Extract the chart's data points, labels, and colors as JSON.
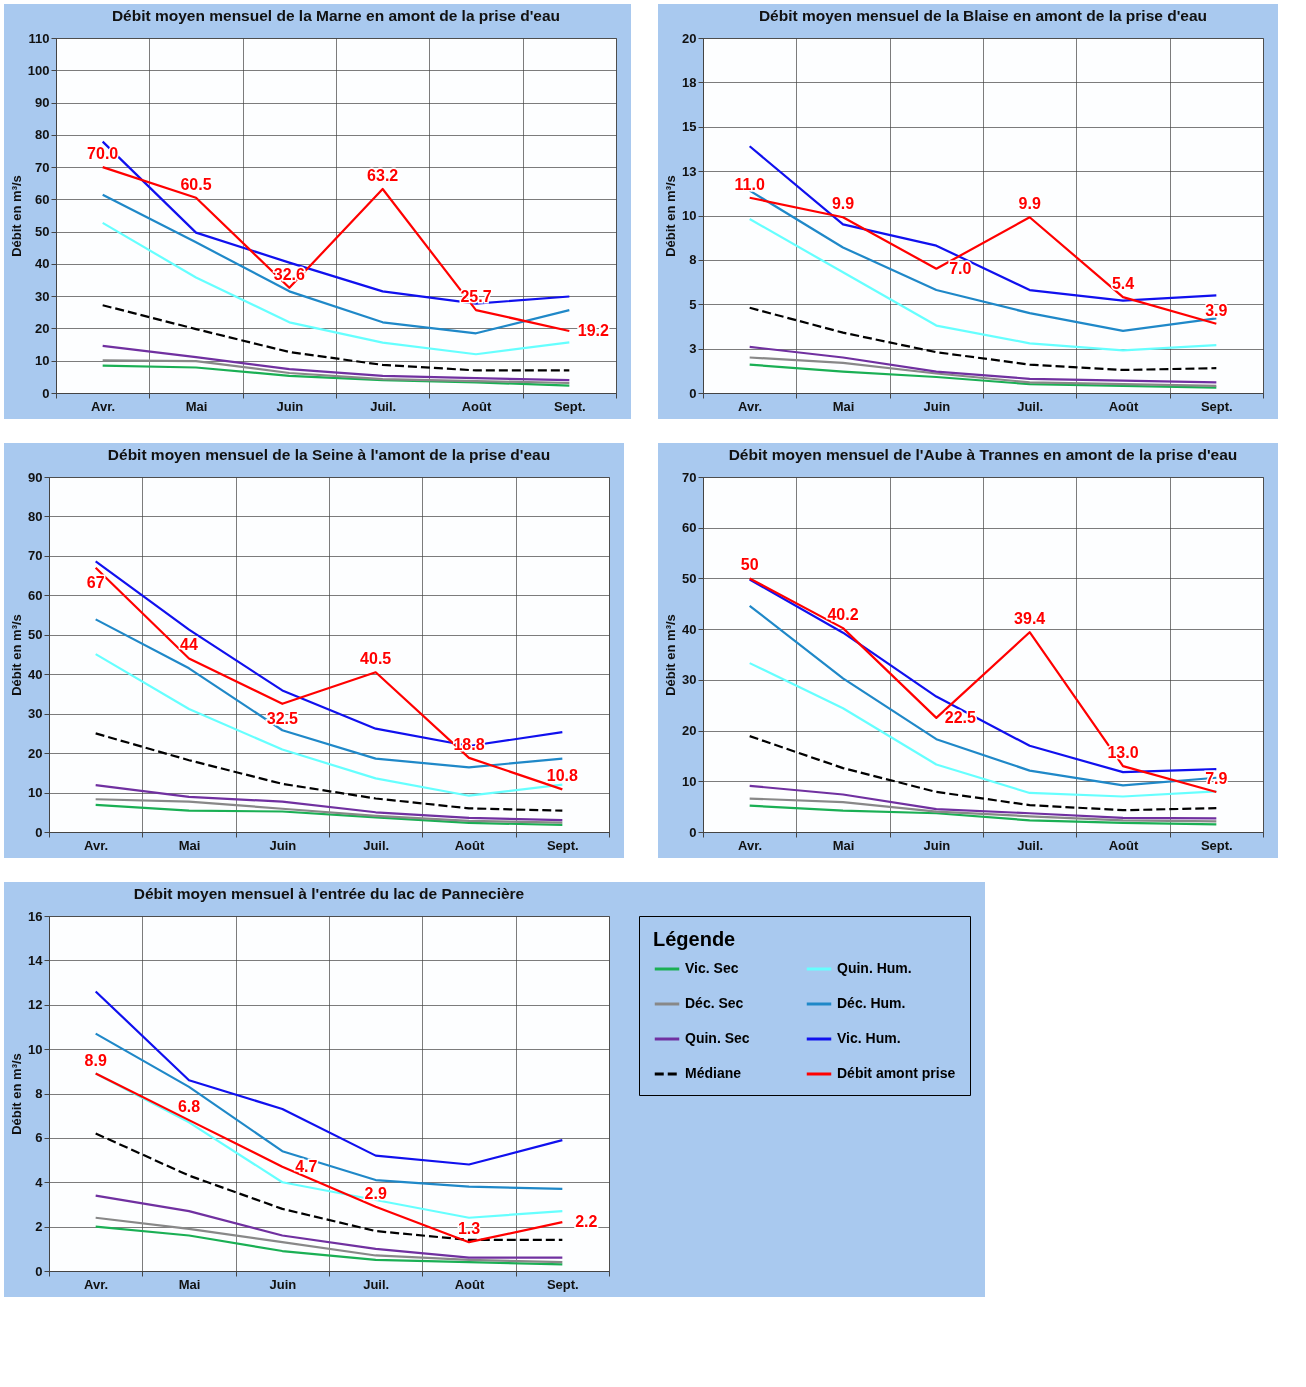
{
  "chart_data": [
    {
      "type": "line",
      "title": "Débit moyen mensuel de la Marne en amont de la prise d'eau",
      "ylabel": "Débit en m³/s",
      "categories": [
        "Avr.",
        "Mai",
        "Juin",
        "Juil.",
        "Août",
        "Sept."
      ],
      "ylim": [
        0,
        110
      ],
      "yticks": [
        0,
        10,
        20,
        30,
        40,
        50,
        60,
        70,
        80,
        90,
        100,
        110
      ],
      "grid": true,
      "legend": false,
      "series": [
        {
          "color": "#1aaf54",
          "values": [
            8.5,
            7.9,
            5.3,
            4.0,
            3.3,
            2.3
          ]
        },
        {
          "color": "#888888",
          "values": [
            10.1,
            9.9,
            6.2,
            4.3,
            3.7,
            3.1
          ]
        },
        {
          "color": "#7030a0",
          "values": [
            14.6,
            11.1,
            7.4,
            5.3,
            4.6,
            4.0
          ]
        },
        {
          "color": "#000000",
          "line_style": "dashed",
          "values": [
            27.2,
            19.8,
            12.7,
            8.7,
            7.0,
            7.0
          ]
        },
        {
          "color": "#66ffff",
          "values": [
            52.7,
            35.8,
            21.9,
            15.6,
            12.0,
            15.7
          ]
        },
        {
          "color": "#1f88c8",
          "values": [
            61.4,
            46.7,
            31.5,
            21.9,
            18.5,
            25.7
          ]
        },
        {
          "color": "#1010ee",
          "values": [
            77.9,
            49.7,
            40.4,
            31.5,
            27.7,
            29.9
          ]
        },
        {
          "color": "#ff0000",
          "values": [
            70.0,
            60.5,
            32.6,
            63.2,
            25.7,
            19.2
          ],
          "value_labels": [
            "70.0",
            "60.5",
            "32.6",
            "63.2",
            "25.7",
            "19.2"
          ]
        }
      ]
    },
    {
      "type": "line",
      "title": "Débit moyen mensuel de la Blaise en amont de la prise d'eau",
      "ylabel": "Débit en m³/s",
      "categories": [
        "Avr.",
        "Mai",
        "Juin",
        "Juil.",
        "Août",
        "Sept."
      ],
      "ylim": [
        0,
        20
      ],
      "yticks": [
        0,
        {
          "value": 2.5,
          "label": "3"
        },
        5,
        {
          "value": 7.5,
          "label": "8"
        },
        10,
        {
          "value": 12.5,
          "label": "13"
        },
        15,
        {
          "value": 17.5,
          "label": "18"
        },
        20
      ],
      "grid": true,
      "legend": false,
      "series": [
        {
          "color": "#1aaf54",
          "values": [
            1.6,
            1.2,
            0.9,
            0.5,
            0.4,
            0.3
          ]
        },
        {
          "color": "#888888",
          "values": [
            2.0,
            1.7,
            1.1,
            0.6,
            0.5,
            0.4
          ]
        },
        {
          "color": "#7030a0",
          "values": [
            2.6,
            2.0,
            1.2,
            0.8,
            0.7,
            0.6
          ]
        },
        {
          "color": "#000000",
          "line_style": "dashed",
          "values": [
            4.8,
            3.4,
            2.3,
            1.6,
            1.3,
            1.4
          ]
        },
        {
          "color": "#66ffff",
          "values": [
            9.8,
            6.8,
            3.8,
            2.8,
            2.4,
            2.7
          ]
        },
        {
          "color": "#1f88c8",
          "values": [
            11.4,
            8.2,
            5.8,
            4.5,
            3.5,
            4.2
          ]
        },
        {
          "color": "#1010ee",
          "values": [
            13.9,
            9.5,
            8.3,
            5.8,
            5.2,
            5.5
          ]
        },
        {
          "color": "#ff0000",
          "values": [
            11.0,
            9.9,
            7.0,
            9.9,
            5.4,
            3.9
          ],
          "value_labels": [
            "11.0",
            "9.9",
            "7.0",
            "9.9",
            "5.4",
            "3.9"
          ]
        }
      ]
    },
    {
      "type": "line",
      "title": "Débit moyen mensuel de la Seine à l'amont de la prise d'eau",
      "ylabel": "Débit en m³/s",
      "categories": [
        "Avr.",
        "Mai",
        "Juin",
        "Juil.",
        "Août",
        "Sept."
      ],
      "ylim": [
        0,
        90
      ],
      "yticks": [
        0,
        10,
        20,
        30,
        40,
        50,
        60,
        70,
        80,
        90
      ],
      "grid": true,
      "legend": false,
      "series": [
        {
          "color": "#1aaf54",
          "values": [
            6.9,
            5.4,
            5.2,
            3.7,
            2.3,
            1.8
          ]
        },
        {
          "color": "#888888",
          "values": [
            8.3,
            7.7,
            5.9,
            4.1,
            2.8,
            2.4
          ]
        },
        {
          "color": "#7030a0",
          "values": [
            11.9,
            8.9,
            7.7,
            5.0,
            3.6,
            3.0
          ]
        },
        {
          "color": "#000000",
          "line_style": "dashed",
          "values": [
            25.0,
            18.2,
            12.2,
            8.5,
            6.0,
            5.4
          ]
        },
        {
          "color": "#66ffff",
          "values": [
            45.1,
            31.2,
            20.9,
            13.6,
            9.2,
            12.0
          ]
        },
        {
          "color": "#1f88c8",
          "values": [
            53.9,
            41.5,
            25.8,
            18.6,
            16.4,
            18.6
          ]
        },
        {
          "color": "#1010ee",
          "values": [
            68.6,
            51.3,
            35.9,
            26.2,
            21.8,
            25.3
          ]
        },
        {
          "color": "#ff0000",
          "values": [
            67,
            44,
            32.5,
            40.5,
            18.8,
            10.8
          ],
          "value_labels": [
            "67",
            "44",
            "32.5",
            "40.5",
            "18.8",
            "10.8"
          ]
        }
      ]
    },
    {
      "type": "line",
      "title": "Débit moyen mensuel de l'Aube à Trannes en amont de la prise d'eau",
      "ylabel": "Débit en m³/s",
      "categories": [
        "Avr.",
        "Mai",
        "Juin",
        "Juil.",
        "Août",
        "Sept."
      ],
      "ylim": [
        0,
        70
      ],
      "yticks": [
        0,
        10,
        20,
        30,
        40,
        50,
        60,
        70
      ],
      "grid": true,
      "legend": false,
      "series": [
        {
          "color": "#1aaf54",
          "values": [
            5.2,
            4.2,
            3.7,
            2.3,
            1.8,
            1.5
          ]
        },
        {
          "color": "#888888",
          "values": [
            6.6,
            5.9,
            4.0,
            3.1,
            2.3,
            2.1
          ]
        },
        {
          "color": "#7030a0",
          "values": [
            9.1,
            7.4,
            4.5,
            3.7,
            2.8,
            2.7
          ]
        },
        {
          "color": "#000000",
          "line_style": "dashed",
          "values": [
            18.9,
            12.6,
            7.9,
            5.3,
            4.3,
            4.7
          ]
        },
        {
          "color": "#66ffff",
          "values": [
            33.3,
            24.4,
            13.3,
            7.7,
            7.0,
            8.0
          ]
        },
        {
          "color": "#1f88c8",
          "values": [
            44.6,
            30.3,
            18.3,
            12.1,
            9.2,
            10.7
          ]
        },
        {
          "color": "#1010ee",
          "values": [
            49.8,
            39.3,
            26.7,
            17.0,
            11.8,
            12.4
          ]
        },
        {
          "color": "#ff0000",
          "values": [
            50,
            40.2,
            22.5,
            39.4,
            13.0,
            7.9
          ],
          "value_labels": [
            "50",
            "40.2",
            "22.5",
            "39.4",
            "13.0",
            "7.9"
          ]
        }
      ]
    },
    {
      "type": "line",
      "title": "Débit moyen mensuel à l'entrée du lac de Pannecière",
      "ylabel": "Débit en m³/s",
      "categories": [
        "Avr.",
        "Mai",
        "Juin",
        "Juil.",
        "Août",
        "Sept."
      ],
      "ylim": [
        0,
        16
      ],
      "yticks": [
        0,
        2,
        4,
        6,
        8,
        10,
        12,
        14,
        16
      ],
      "grid": true,
      "legend": "right",
      "legend_title": "Légende",
      "series": [
        {
          "name": "Vic. Sec",
          "color": "#1aaf54",
          "values": [
            2.0,
            1.6,
            0.9,
            0.5,
            0.4,
            0.3
          ]
        },
        {
          "name": "Déc. Sec",
          "color": "#888888",
          "values": [
            2.4,
            1.9,
            1.3,
            0.7,
            0.5,
            0.4
          ]
        },
        {
          "name": "Quin. Sec",
          "color": "#7030a0",
          "values": [
            3.4,
            2.7,
            1.6,
            1.0,
            0.6,
            0.6
          ]
        },
        {
          "name": "Médiane",
          "color": "#000000",
          "line_style": "dashed",
          "values": [
            6.2,
            4.3,
            2.8,
            1.8,
            1.4,
            1.4
          ]
        },
        {
          "name": "Quin. Hum.",
          "color": "#66ffff",
          "values": [
            8.9,
            6.7,
            4.0,
            3.2,
            2.4,
            2.7
          ]
        },
        {
          "name": "Déc. Hum.",
          "color": "#1f88c8",
          "values": [
            10.7,
            8.3,
            5.4,
            4.1,
            3.8,
            3.7
          ]
        },
        {
          "name": "Vic. Hum.",
          "color": "#1010ee",
          "values": [
            12.6,
            8.6,
            7.3,
            5.2,
            4.8,
            5.9
          ]
        },
        {
          "name": "Débit amont prise",
          "color": "#ff0000",
          "values": [
            8.9,
            6.8,
            4.7,
            2.9,
            1.3,
            2.2
          ],
          "value_labels": [
            "8.9",
            "6.8",
            "4.7",
            "2.9",
            "1.3",
            "2.2"
          ]
        }
      ]
    }
  ]
}
